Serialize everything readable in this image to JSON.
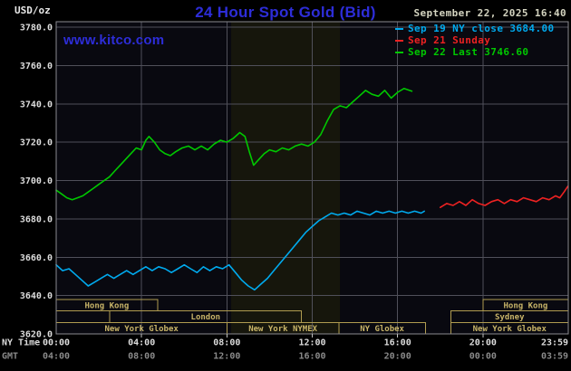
{
  "header": {
    "unit_label": "USD/oz",
    "title": "24 Hour Spot Gold (Bid)",
    "datetime": "September 22, 2025 16:40",
    "watermark": "www.kitco.com"
  },
  "legend": [
    {
      "label": "Sep 19 NY close 3684.00",
      "color": "#00aaee"
    },
    {
      "label": "Sep 21 Sunday",
      "color": "#ee2222"
    },
    {
      "label": "Sep 22 Last 3746.60",
      "color": "#00c800"
    }
  ],
  "axes": {
    "ny_time_label": "NY Time",
    "gmt_label": "GMT",
    "y_ticks": [
      "3780.0",
      "3760.0",
      "3740.0",
      "3720.0",
      "3700.0",
      "3680.0",
      "3660.0",
      "3640.0",
      "3620.0"
    ],
    "x_tick_hours": [
      0,
      4,
      8,
      12,
      16,
      20,
      24
    ],
    "x_ticks_ny": [
      "00:00",
      "04:00",
      "08:00",
      "12:00",
      "16:00",
      "20:00",
      "23:59"
    ],
    "x_ticks_gmt": [
      "04:00",
      "08:00",
      "12:00",
      "16:00",
      "20:00",
      "00:00",
      "03:59"
    ]
  },
  "sessions": {
    "rows": [
      [
        {
          "label": "Hong Kong",
          "start": 0,
          "end": 4.75
        },
        {
          "label": "Hong Kong",
          "start": 20,
          "end": 24
        }
      ],
      [
        {
          "label": "London",
          "start": 2.5,
          "end": 11.5
        },
        {
          "label": "Sydney",
          "start": 18.5,
          "end": 24
        }
      ],
      [
        {
          "label": "New York Globex",
          "start": 0,
          "end": 8
        },
        {
          "label": "New York NYMEX",
          "start": 8,
          "end": 13.25
        },
        {
          "label": "NY Globex",
          "start": 13.25,
          "end": 17.3
        },
        {
          "label": "New York Globex",
          "start": 18.5,
          "end": 24
        }
      ]
    ]
  },
  "colors": {
    "title_blue": "#2d2dd8",
    "date_text": "#d4d4c0",
    "cyan_series": "#00aaee",
    "red_series": "#ee2222",
    "green_series": "#00c800",
    "grid": "#50505a",
    "frame": "#8a8a90",
    "plot_bg": "#090910",
    "nymex_band": "#16160c",
    "session_border": "#b09c50",
    "session_text": "#c8b468",
    "axis_text": "#dcdcdc",
    "gmt_text": "#8a8a8a"
  },
  "chart_data": {
    "type": "line",
    "title": "24 Hour Spot Gold (Bid)",
    "xlabel": "NY Time (hours)",
    "ylabel": "USD/oz",
    "xlim": [
      0,
      24
    ],
    "ylim": [
      3620,
      3780
    ],
    "y_grid_step": 20,
    "x_grid_step": 4,
    "grid": true,
    "legend_position": "top-right",
    "nymex_band": {
      "start": 8.2,
      "end": 13.3
    },
    "series": [
      {
        "name": "Sep 19 NY close",
        "color": "#00aaee",
        "close": 3684.0,
        "x": [
          0,
          0.3,
          0.6,
          0.9,
          1.2,
          1.5,
          1.8,
          2.1,
          2.4,
          2.7,
          3.0,
          3.3,
          3.6,
          3.9,
          4.2,
          4.5,
          4.8,
          5.1,
          5.4,
          5.7,
          6.0,
          6.3,
          6.6,
          6.9,
          7.2,
          7.5,
          7.8,
          8.1,
          8.4,
          8.7,
          9.0,
          9.3,
          9.6,
          9.9,
          10.2,
          10.5,
          10.8,
          11.1,
          11.4,
          11.7,
          12.0,
          12.3,
          12.6,
          12.9,
          13.2,
          13.5,
          13.8,
          14.1,
          14.4,
          14.7,
          15.0,
          15.3,
          15.6,
          15.9,
          16.2,
          16.5,
          16.8,
          17.1,
          17.25
        ],
        "y": [
          3656,
          3653,
          3654,
          3651,
          3648,
          3645,
          3647,
          3649,
          3651,
          3649,
          3651,
          3653,
          3651,
          3653,
          3655,
          3653,
          3655,
          3654,
          3652,
          3654,
          3656,
          3654,
          3652,
          3655,
          3653,
          3655,
          3654,
          3656,
          3652,
          3648,
          3645,
          3643,
          3646,
          3649,
          3653,
          3657,
          3661,
          3665,
          3669,
          3673,
          3676,
          3679,
          3681,
          3683,
          3682,
          3683,
          3682,
          3684,
          3683,
          3682,
          3684,
          3683,
          3684,
          3683,
          3684,
          3683,
          3684,
          3683,
          3684
        ]
      },
      {
        "name": "Sep 21 Sunday",
        "color": "#ee2222",
        "x": [
          18.0,
          18.3,
          18.6,
          18.9,
          19.2,
          19.5,
          19.8,
          20.1,
          20.4,
          20.7,
          21.0,
          21.3,
          21.6,
          21.9,
          22.2,
          22.5,
          22.8,
          23.1,
          23.4,
          23.6,
          23.8,
          23.98
        ],
        "y": [
          3686,
          3688,
          3687,
          3689,
          3687,
          3690,
          3688,
          3687,
          3689,
          3690,
          3688,
          3690,
          3689,
          3691,
          3690,
          3689,
          3691,
          3690,
          3692,
          3691,
          3694,
          3697
        ]
      },
      {
        "name": "Sep 22",
        "color": "#00c800",
        "last": 3746.6,
        "x": [
          0,
          0.25,
          0.5,
          0.75,
          1.0,
          1.25,
          1.5,
          1.75,
          2.0,
          2.25,
          2.5,
          2.75,
          3.0,
          3.25,
          3.5,
          3.75,
          4.0,
          4.2,
          4.35,
          4.6,
          4.85,
          5.1,
          5.35,
          5.6,
          5.9,
          6.2,
          6.5,
          6.8,
          7.1,
          7.4,
          7.7,
          8.0,
          8.3,
          8.6,
          8.85,
          9.05,
          9.25,
          9.5,
          9.75,
          10.0,
          10.3,
          10.6,
          10.9,
          11.2,
          11.5,
          11.8,
          12.1,
          12.4,
          12.7,
          13.0,
          13.3,
          13.6,
          13.9,
          14.2,
          14.5,
          14.8,
          15.1,
          15.4,
          15.7,
          16.0,
          16.3,
          16.67
        ],
        "y": [
          3695,
          3693,
          3691,
          3690,
          3691,
          3692,
          3694,
          3696,
          3698,
          3700,
          3702,
          3705,
          3708,
          3711,
          3714,
          3717,
          3716,
          3721,
          3723,
          3720,
          3716,
          3714,
          3713,
          3715,
          3717,
          3718,
          3716,
          3718,
          3716,
          3719,
          3721,
          3720,
          3722,
          3725,
          3723,
          3715,
          3708,
          3711,
          3714,
          3716,
          3715,
          3717,
          3716,
          3718,
          3719,
          3718,
          3720,
          3724,
          3731,
          3737,
          3739,
          3738,
          3741,
          3744,
          3747,
          3745,
          3744,
          3747,
          3743,
          3746,
          3748,
          3746.6
        ]
      }
    ]
  }
}
